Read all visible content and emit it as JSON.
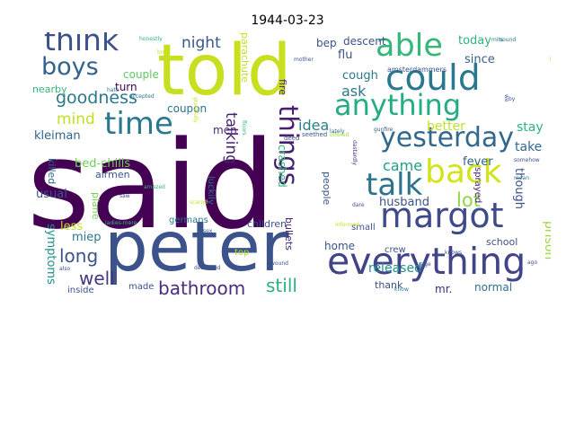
{
  "title": "1944-03-23",
  "words": [
    {
      "text": "said",
      "color": "#440154"
    },
    {
      "text": "told",
      "color": "#c8df20"
    },
    {
      "text": "peter",
      "color": "#3b528b"
    },
    {
      "text": "everything",
      "color": "#414487"
    },
    {
      "text": "margot",
      "color": "#3e4a89"
    },
    {
      "text": "yesterday",
      "color": "#31688e"
    },
    {
      "text": "back",
      "color": "#d2e21b"
    },
    {
      "text": "talk",
      "color": "#2c728e"
    },
    {
      "text": "could",
      "color": "#2a788e"
    },
    {
      "text": "anything",
      "color": "#25ac82"
    },
    {
      "text": "able",
      "color": "#35b779"
    },
    {
      "text": "time",
      "color": "#2a788e"
    },
    {
      "text": "think",
      "color": "#3b528b"
    },
    {
      "text": "boys",
      "color": "#33638d"
    },
    {
      "text": "tell",
      "color": "#bddf26"
    },
    {
      "text": "things",
      "color": "#481f70"
    },
    {
      "text": "goodness",
      "color": "#2a788e"
    },
    {
      "text": "long",
      "color": "#3b528b"
    },
    {
      "text": "bathroom",
      "color": "#472d7b"
    },
    {
      "text": "well",
      "color": "#453781"
    },
    {
      "text": "still",
      "color": "#2db27d"
    },
    {
      "text": "lot",
      "color": "#8fd744"
    },
    {
      "text": "mind",
      "color": "#c2df23"
    },
    {
      "text": "night",
      "color": "#39558c"
    },
    {
      "text": "talking",
      "color": "#481f70"
    },
    {
      "text": "came",
      "color": "#1f9f88"
    },
    {
      "text": "idea",
      "color": "#27808e"
    },
    {
      "text": "ask",
      "color": "#2a788e"
    },
    {
      "text": "husband",
      "color": "#3b528b"
    },
    {
      "text": "released",
      "color": "#21918c"
    },
    {
      "text": "miep",
      "color": "#2a788e"
    },
    {
      "text": "symptoms",
      "color": "#21918c"
    },
    {
      "text": "bed-chills",
      "color": "#6ece58"
    },
    {
      "text": "kleiman",
      "color": "#33638d"
    },
    {
      "text": "usual",
      "color": "#3b528b"
    },
    {
      "text": "killed",
      "color": "#31688e"
    },
    {
      "text": "less",
      "color": "#c2df23"
    },
    {
      "text": "fever",
      "color": "#33638d"
    },
    {
      "text": "better",
      "color": "#c2df23"
    },
    {
      "text": "stay",
      "color": "#2fb47c"
    },
    {
      "text": "take",
      "color": "#31688e"
    },
    {
      "text": "though",
      "color": "#3b528b"
    },
    {
      "text": "prison",
      "color": "#9bd93c"
    },
    {
      "text": "today",
      "color": "#2fb47c"
    },
    {
      "text": "since",
      "color": "#355f8d"
    },
    {
      "text": "cough",
      "color": "#2a788e"
    },
    {
      "text": "flu",
      "color": "#3b528b"
    },
    {
      "text": "descent",
      "color": "#3b528b"
    },
    {
      "text": "bep",
      "color": "#3b528b"
    },
    {
      "text": "turn",
      "color": "#440154"
    },
    {
      "text": "couple",
      "color": "#5ec962"
    },
    {
      "text": "coupon",
      "color": "#2c728e"
    },
    {
      "text": "men",
      "color": "#482878"
    },
    {
      "text": "crashed",
      "color": "#35b779"
    },
    {
      "text": "plane",
      "color": "#7ad151"
    },
    {
      "text": "airmen",
      "color": "#3b528b"
    },
    {
      "text": "germans",
      "color": "#2a788e"
    },
    {
      "text": "children",
      "color": "#3b528b"
    },
    {
      "text": "luckily",
      "color": "#2c728e"
    },
    {
      "text": "people",
      "color": "#39568c"
    },
    {
      "text": "home",
      "color": "#3b528b"
    },
    {
      "text": "small",
      "color": "#3b528b"
    },
    {
      "text": "school",
      "color": "#3b528b"
    },
    {
      "text": "crew",
      "color": "#3b528b"
    },
    {
      "text": "thank",
      "color": "#3b528b"
    },
    {
      "text": "mr.",
      "color": "#482878"
    },
    {
      "text": "normal",
      "color": "#2c728e"
    },
    {
      "text": "made",
      "color": "#3b528b"
    },
    {
      "text": "inside",
      "color": "#3b528b"
    },
    {
      "text": "top",
      "color": "#b5de2b"
    },
    {
      "text": "bullets",
      "color": "#482878"
    },
    {
      "text": "sprayed",
      "color": "#482878"
    },
    {
      "text": "fire",
      "color": "#482878"
    },
    {
      "text": "parachute",
      "color": "#c8df20"
    },
    {
      "text": "nearby",
      "color": "#35b779"
    },
    {
      "text": "amsterdammers",
      "color": "#3b528b"
    },
    {
      "text": "gunfire",
      "color": "#3b528b"
    },
    {
      "text": "dastardly",
      "color": "#482878"
    },
    {
      "text": "seethed",
      "color": "#3b528b"
    },
    {
      "text": "deed",
      "color": "#3b528b"
    },
    {
      "text": "offered",
      "color": "#a0da39"
    },
    {
      "text": "lately",
      "color": "#31688e"
    },
    {
      "text": "mother",
      "color": "#3b528b"
    },
    {
      "text": "honestly",
      "color": "#2fb47c"
    },
    {
      "text": "brrr",
      "color": "#c8df20"
    },
    {
      "text": "hate",
      "color": "#2a788e"
    },
    {
      "text": "accepted",
      "color": "#2c728e"
    },
    {
      "text": "gratefully",
      "color": "#c8df20"
    },
    {
      "text": "mits",
      "color": "#2a788e"
    },
    {
      "text": "sound",
      "color": "#2a788e"
    },
    {
      "text": "we",
      "color": "#3b528b"
    },
    {
      "text": "by",
      "color": "#3b528b"
    },
    {
      "text": "ladies-mere",
      "color": "#35b779"
    },
    {
      "text": "amazed",
      "color": "#35b779"
    },
    {
      "text": "saw",
      "color": "#3b528b"
    },
    {
      "text": "sex",
      "color": "#3b528b"
    },
    {
      "text": "described",
      "color": "#3b528b"
    },
    {
      "text": "scared",
      "color": "#c8df20"
    },
    {
      "text": "wound",
      "color": "#3b528b"
    },
    {
      "text": "rage",
      "color": "#3b528b"
    },
    {
      "text": "knows",
      "color": "#3b528b"
    },
    {
      "text": "ago",
      "color": "#3b528b"
    },
    {
      "text": "know",
      "color": "#2a788e"
    },
    {
      "text": "also",
      "color": "#3b528b"
    },
    {
      "text": "dare",
      "color": "#3b528b"
    },
    {
      "text": "somehow",
      "color": "#3b528b"
    },
    {
      "text": "mean",
      "color": "#2a788e"
    },
    {
      "text": "informed",
      "color": "#c8df20"
    },
    {
      "text": "floors",
      "color": "#35b779"
    }
  ]
}
